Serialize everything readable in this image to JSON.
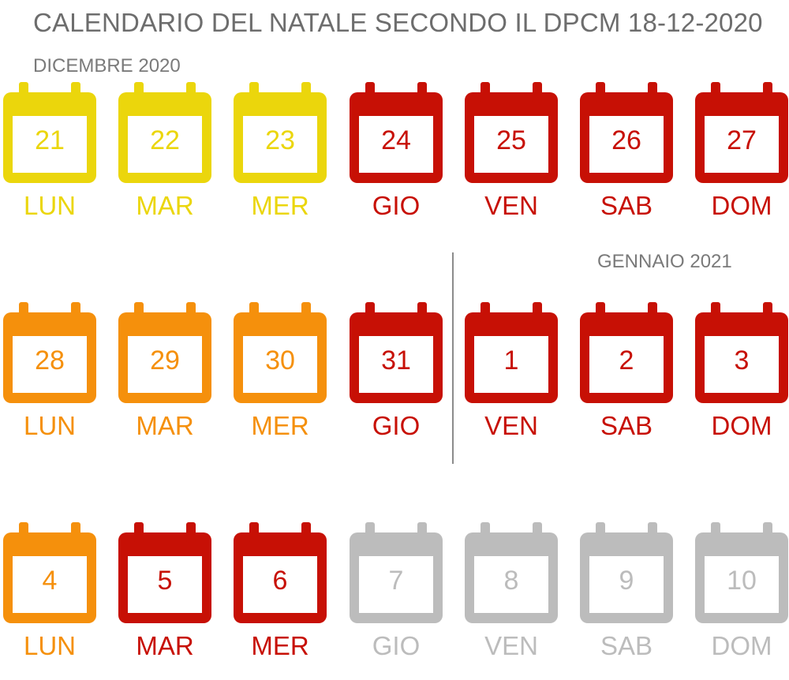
{
  "title": "CALENDARIO DEL NATALE SECONDO IL DPCM 18-12-2020",
  "months": {
    "december": "DICEMBRE 2020",
    "january": "GENNAIO 2021"
  },
  "colors": {
    "yellow": "#ebd60c",
    "orange": "#f5900c",
    "red": "#c71005",
    "grey": "#bcbcbc"
  },
  "weeks": [
    {
      "days": [
        {
          "num": "21",
          "dow": "LUN",
          "color": "yellow"
        },
        {
          "num": "22",
          "dow": "MAR",
          "color": "yellow"
        },
        {
          "num": "23",
          "dow": "MER",
          "color": "yellow"
        },
        {
          "num": "24",
          "dow": "GIO",
          "color": "red"
        },
        {
          "num": "25",
          "dow": "VEN",
          "color": "red"
        },
        {
          "num": "26",
          "dow": "SAB",
          "color": "red"
        },
        {
          "num": "27",
          "dow": "DOM",
          "color": "red"
        }
      ]
    },
    {
      "days": [
        {
          "num": "28",
          "dow": "LUN",
          "color": "orange"
        },
        {
          "num": "29",
          "dow": "MAR",
          "color": "orange"
        },
        {
          "num": "30",
          "dow": "MER",
          "color": "orange"
        },
        {
          "num": "31",
          "dow": "GIO",
          "color": "red"
        },
        {
          "num": "1",
          "dow": "VEN",
          "color": "red"
        },
        {
          "num": "2",
          "dow": "SAB",
          "color": "red"
        },
        {
          "num": "3",
          "dow": "DOM",
          "color": "red"
        }
      ]
    },
    {
      "days": [
        {
          "num": "4",
          "dow": "LUN",
          "color": "orange"
        },
        {
          "num": "5",
          "dow": "MAR",
          "color": "red"
        },
        {
          "num": "6",
          "dow": "MER",
          "color": "red"
        },
        {
          "num": "7",
          "dow": "GIO",
          "color": "grey"
        },
        {
          "num": "8",
          "dow": "VEN",
          "color": "grey"
        },
        {
          "num": "9",
          "dow": "SAB",
          "color": "grey"
        },
        {
          "num": "10",
          "dow": "DOM",
          "color": "grey"
        }
      ]
    }
  ]
}
